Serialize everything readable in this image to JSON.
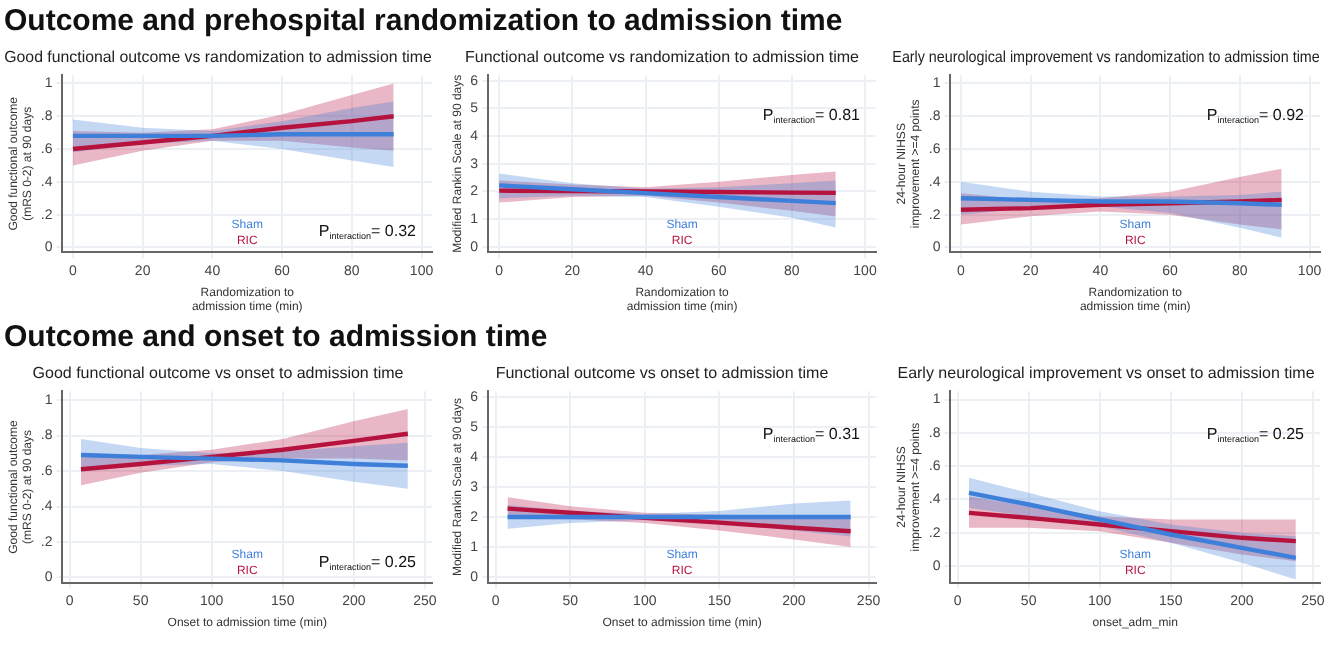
{
  "chart_data": [
    {
      "type": "other",
      "title": "Outcome and prehospital randomization to admission time"
    },
    {
      "type": "line",
      "title": "Good functional outcome vs randomization to admission time",
      "xlabel": "Randomization to admission time (min)",
      "ylabel": "Good functional outcome (mRS 0-2) at 90 days",
      "xlim": [
        -3,
        103
      ],
      "xticks": [
        0,
        20,
        40,
        60,
        80,
        100
      ],
      "ylim": [
        -0.03,
        1.05
      ],
      "yticks": [
        0,
        {
          "value": 0.2,
          "label": ".2"
        },
        {
          "value": 0.4,
          "label": ".4"
        },
        {
          "value": 0.6,
          "label": ".6"
        },
        {
          "value": 0.8,
          "label": ".8"
        },
        1
      ],
      "grid": true,
      "legend": "bottom",
      "annotations": [
        "P$_{interaction}$= 0.32"
      ],
      "series": [
        {
          "name": "Sham",
          "color": "#3d7fd9",
          "x": [
            0,
            20,
            40,
            60,
            80,
            92
          ],
          "values": [
            0.68,
            0.68,
            0.68,
            0.69,
            0.69,
            0.69
          ],
          "lower": [
            0.58,
            0.63,
            0.65,
            0.6,
            0.53,
            0.49
          ],
          "upper": [
            0.78,
            0.73,
            0.71,
            0.77,
            0.85,
            0.89
          ]
        },
        {
          "name": "RIC",
          "color": "#b5123e",
          "x": [
            0,
            20,
            40,
            60,
            80,
            92
          ],
          "values": [
            0.6,
            0.64,
            0.68,
            0.73,
            0.77,
            0.8
          ],
          "lower": [
            0.5,
            0.59,
            0.65,
            0.65,
            0.61,
            0.59
          ],
          "upper": [
            0.71,
            0.7,
            0.72,
            0.81,
            0.93,
            1.0
          ]
        }
      ]
    },
    {
      "type": "line",
      "title": "Functional outcome vs randomization to admission time",
      "xlabel": "Randomization to admission time (min)",
      "ylabel": "Modified Rankin Scale at 90 days",
      "xlim": [
        -3,
        103
      ],
      "xticks": [
        0,
        20,
        40,
        60,
        80,
        100
      ],
      "ylim": [
        -0.2,
        6.2
      ],
      "yticks": [
        0,
        1,
        2,
        3,
        4,
        5,
        6
      ],
      "grid": true,
      "legend": "bottom",
      "annotations": [
        "P$_{interaction}$= 0.81"
      ],
      "series": [
        {
          "name": "Sham",
          "color": "#3d7fd9",
          "x": [
            0,
            20,
            40,
            60,
            80,
            92
          ],
          "values": [
            2.22,
            2.08,
            1.94,
            1.8,
            1.66,
            1.58
          ],
          "lower": [
            1.75,
            1.85,
            1.8,
            1.45,
            1.05,
            0.7
          ],
          "upper": [
            2.65,
            2.3,
            2.1,
            2.15,
            2.3,
            2.4
          ]
        },
        {
          "name": "RIC",
          "color": "#b5123e",
          "x": [
            0,
            20,
            40,
            60,
            80,
            92
          ],
          "values": [
            2.03,
            2.02,
            2.0,
            1.98,
            1.96,
            1.95
          ],
          "lower": [
            1.6,
            1.8,
            1.85,
            1.6,
            1.3,
            1.1
          ],
          "upper": [
            2.4,
            2.25,
            2.15,
            2.35,
            2.6,
            2.72
          ]
        }
      ]
    },
    {
      "type": "line",
      "title": "Early neurological improvement vs randomization to admission time",
      "xlabel": "Randomization to admission time (min)",
      "ylabel": "24-hour NIHSS improvement >=4 points",
      "xlim": [
        -3,
        103
      ],
      "xticks": [
        0,
        20,
        40,
        60,
        80,
        100
      ],
      "ylim": [
        -0.03,
        1.05
      ],
      "yticks": [
        0,
        {
          "value": 0.2,
          "label": ".2"
        },
        {
          "value": 0.4,
          "label": ".4"
        },
        {
          "value": 0.6,
          "label": ".6"
        },
        {
          "value": 0.8,
          "label": ".8"
        },
        1
      ],
      "grid": true,
      "legend": "bottom",
      "annotations": [
        "P$_{interaction}$= 0.92"
      ],
      "series": [
        {
          "name": "Sham",
          "color": "#3d7fd9",
          "x": [
            0,
            20,
            40,
            60,
            80,
            92
          ],
          "values": [
            0.3,
            0.29,
            0.28,
            0.28,
            0.27,
            0.26
          ],
          "lower": [
            0.2,
            0.24,
            0.25,
            0.21,
            0.12,
            0.06
          ],
          "upper": [
            0.4,
            0.34,
            0.31,
            0.31,
            0.32,
            0.34
          ]
        },
        {
          "name": "RIC",
          "color": "#b5123e",
          "x": [
            0,
            20,
            40,
            60,
            80,
            92
          ],
          "values": [
            0.23,
            0.24,
            0.26,
            0.27,
            0.28,
            0.29
          ],
          "lower": [
            0.14,
            0.19,
            0.22,
            0.2,
            0.14,
            0.11
          ],
          "upper": [
            0.33,
            0.29,
            0.3,
            0.34,
            0.43,
            0.48
          ]
        }
      ]
    },
    {
      "type": "other",
      "title": "Outcome and onset to admission time"
    },
    {
      "type": "line",
      "title": "Good functional outcome vs onset to admission time",
      "xlabel": "Onset to admission time (min)",
      "ylabel": "Good functional outcome (mRS 0-2) at 90 days",
      "xlim": [
        -5,
        255
      ],
      "xticks": [
        0,
        50,
        100,
        150,
        200,
        250
      ],
      "ylim": [
        -0.03,
        1.05
      ],
      "yticks": [
        0,
        {
          "value": 0.2,
          "label": ".2"
        },
        {
          "value": 0.4,
          "label": ".4"
        },
        {
          "value": 0.6,
          "label": ".6"
        },
        {
          "value": 0.8,
          "label": ".8"
        },
        1
      ],
      "grid": true,
      "legend": "bottom",
      "annotations": [
        "P$_{interaction}$= 0.25"
      ],
      "series": [
        {
          "name": "Sham",
          "color": "#3d7fd9",
          "x": [
            8,
            50,
            100,
            150,
            200,
            238
          ],
          "values": [
            0.69,
            0.68,
            0.67,
            0.66,
            0.64,
            0.63
          ],
          "lower": [
            0.6,
            0.63,
            0.64,
            0.6,
            0.54,
            0.5
          ],
          "upper": [
            0.78,
            0.73,
            0.7,
            0.71,
            0.74,
            0.76
          ]
        },
        {
          "name": "RIC",
          "color": "#b5123e",
          "x": [
            8,
            50,
            100,
            150,
            200,
            238
          ],
          "values": [
            0.61,
            0.64,
            0.68,
            0.72,
            0.77,
            0.81
          ],
          "lower": [
            0.52,
            0.59,
            0.65,
            0.67,
            0.67,
            0.66
          ],
          "upper": [
            0.7,
            0.69,
            0.72,
            0.78,
            0.88,
            0.95
          ]
        }
      ]
    },
    {
      "type": "line",
      "title": "Functional outcome vs onset to admission time",
      "xlabel": "Onset to admission time (min)",
      "ylabel": "Modified Rankin Scale at 90 days",
      "xlim": [
        -5,
        255
      ],
      "xticks": [
        0,
        50,
        100,
        150,
        200,
        250
      ],
      "ylim": [
        -0.2,
        6.2
      ],
      "yticks": [
        0,
        1,
        2,
        3,
        4,
        5,
        6
      ],
      "grid": true,
      "legend": "bottom",
      "annotations": [
        "P$_{interaction}$= 0.31"
      ],
      "series": [
        {
          "name": "Sham",
          "color": "#3d7fd9",
          "x": [
            8,
            50,
            100,
            150,
            200,
            238
          ],
          "values": [
            2.0,
            2.0,
            2.0,
            2.0,
            2.0,
            2.0
          ],
          "lower": [
            1.6,
            1.8,
            1.9,
            1.8,
            1.55,
            1.35
          ],
          "upper": [
            2.4,
            2.2,
            2.1,
            2.2,
            2.45,
            2.55
          ]
        },
        {
          "name": "RIC",
          "color": "#b5123e",
          "x": [
            8,
            50,
            100,
            150,
            200,
            238
          ],
          "values": [
            2.28,
            2.14,
            1.97,
            1.81,
            1.64,
            1.52
          ],
          "lower": [
            1.93,
            1.92,
            1.8,
            1.55,
            1.25,
            1.0
          ],
          "upper": [
            2.66,
            2.36,
            2.14,
            2.07,
            2.03,
            2.0
          ]
        }
      ]
    },
    {
      "type": "line",
      "title": "Early neurological improvement vs onset to admission time",
      "xlabel": "onset_adm_min",
      "ylabel": "24-hour NIHSS improvement >=4 points",
      "xlim": [
        -5,
        255
      ],
      "xticks": [
        0,
        50,
        100,
        150,
        200,
        250
      ],
      "ylim": [
        -0.1,
        1.05
      ],
      "yticks": [
        0,
        {
          "value": 0.2,
          "label": ".2"
        },
        {
          "value": 0.4,
          "label": ".4"
        },
        {
          "value": 0.6,
          "label": ".6"
        },
        {
          "value": 0.8,
          "label": ".8"
        },
        1
      ],
      "grid": true,
      "legend": "bottom",
      "annotations": [
        "P$_{interaction}$= 0.25"
      ],
      "series": [
        {
          "name": "Sham",
          "color": "#3d7fd9",
          "x": [
            8,
            50,
            100,
            150,
            200,
            238
          ],
          "values": [
            0.44,
            0.37,
            0.28,
            0.19,
            0.11,
            0.05
          ],
          "lower": [
            0.35,
            0.3,
            0.24,
            0.14,
            0.02,
            -0.08
          ],
          "upper": [
            0.53,
            0.44,
            0.33,
            0.25,
            0.2,
            0.18
          ]
        },
        {
          "name": "RIC",
          "color": "#b5123e",
          "x": [
            8,
            50,
            100,
            150,
            200,
            238
          ],
          "values": [
            0.32,
            0.29,
            0.25,
            0.21,
            0.17,
            0.15
          ],
          "lower": [
            0.23,
            0.23,
            0.21,
            0.14,
            0.07,
            0.03
          ],
          "upper": [
            0.42,
            0.36,
            0.3,
            0.28,
            0.28,
            0.28
          ]
        }
      ]
    }
  ]
}
